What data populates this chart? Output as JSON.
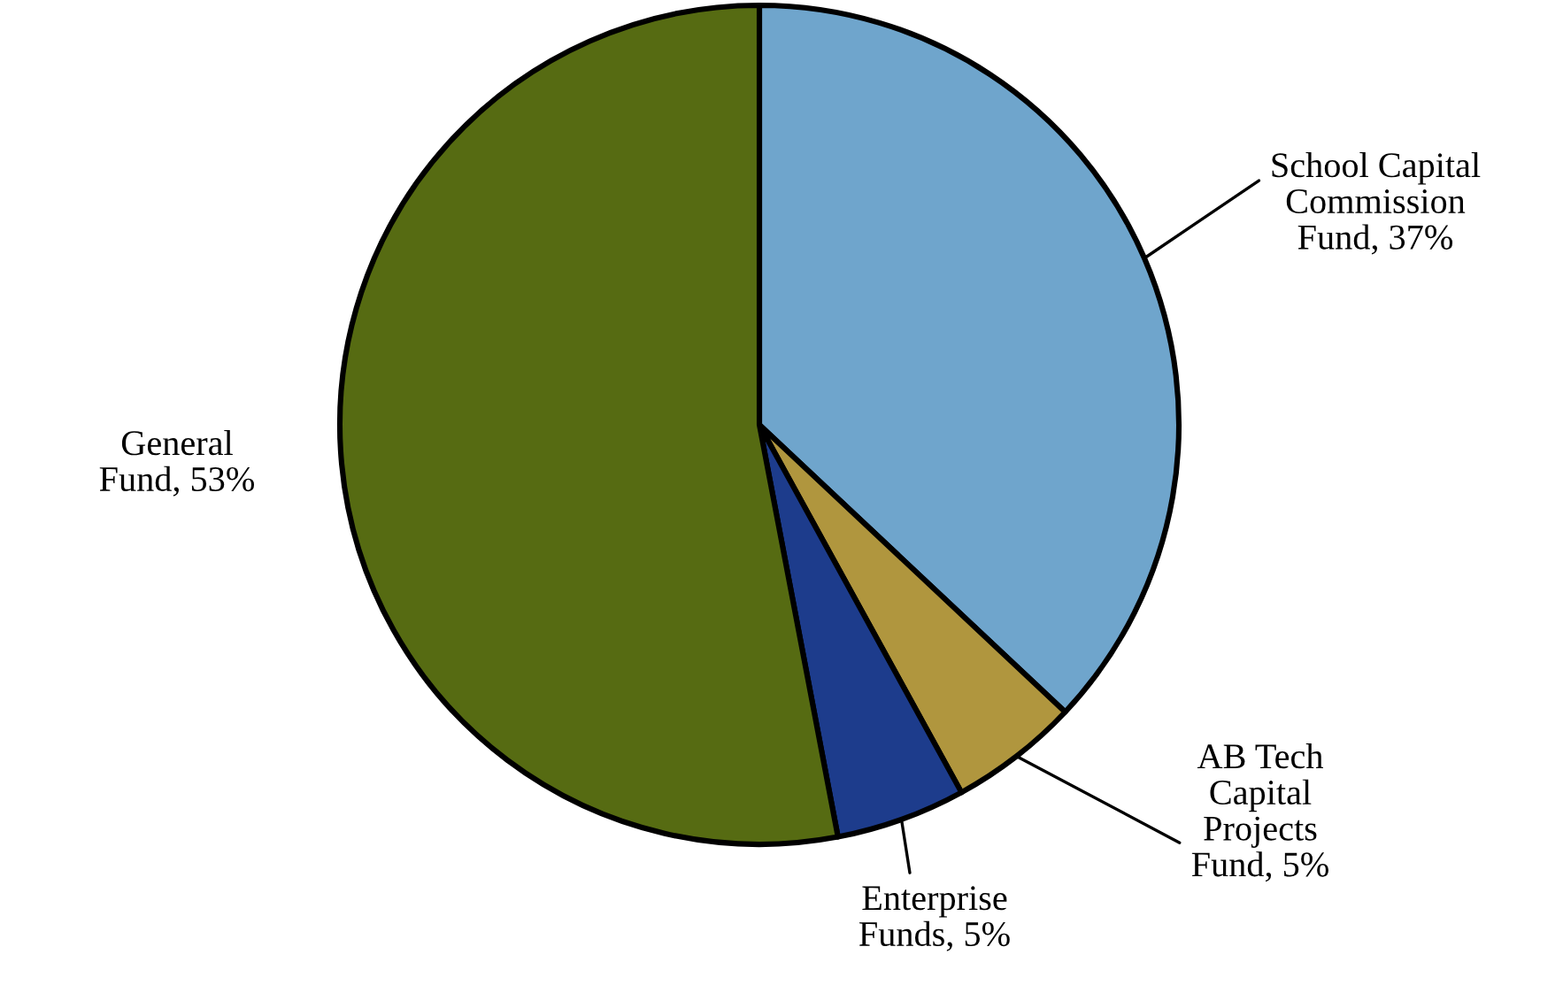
{
  "chart_data": {
    "type": "pie",
    "categories": [
      "School Capital Commission Fund",
      "AB Tech Capital Projects Fund",
      "Enterprise Funds",
      "General Fund"
    ],
    "values": [
      37,
      5,
      5,
      53
    ],
    "value_labels": [
      "37%",
      "5%",
      "5%",
      "53%"
    ],
    "colors": [
      "#6fa5cc",
      "#b0963e",
      "#1d3c8c",
      "#566b12"
    ]
  }
}
